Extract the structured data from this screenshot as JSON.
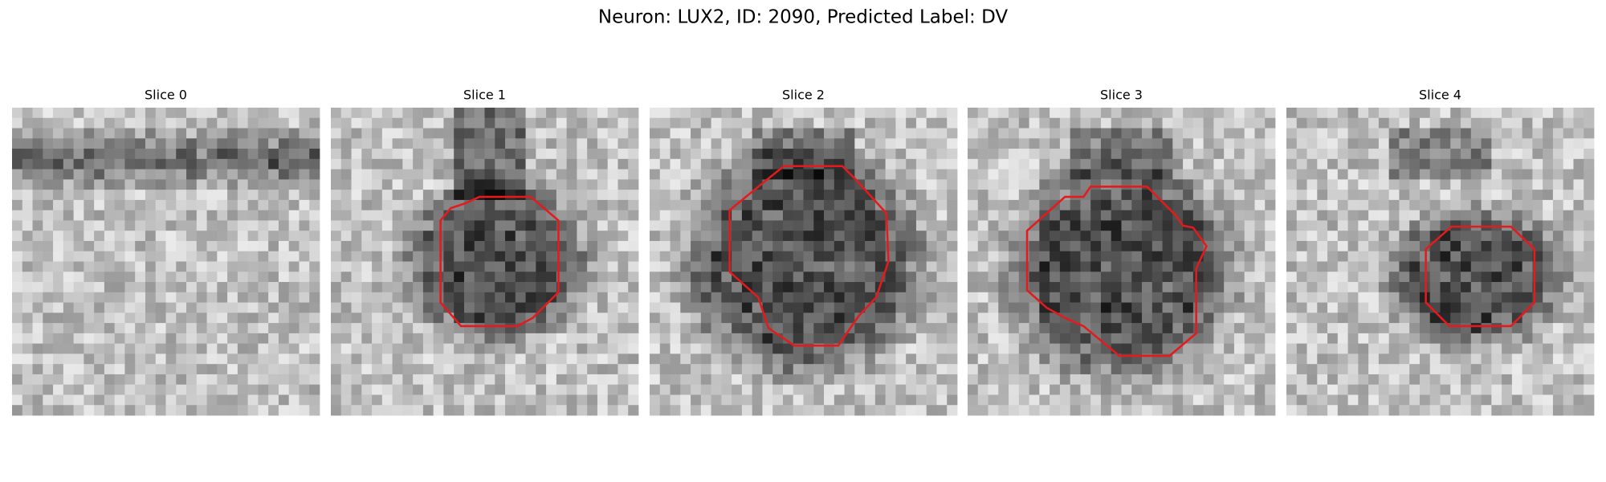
{
  "title": "Neuron: LUX2, ID: 2090, Predicted Label: DV",
  "panels": [
    {
      "title": "Slice 0"
    },
    {
      "title": "Slice 1"
    },
    {
      "title": "Slice 2"
    },
    {
      "title": "Slice 3"
    },
    {
      "title": "Slice 4"
    }
  ]
}
